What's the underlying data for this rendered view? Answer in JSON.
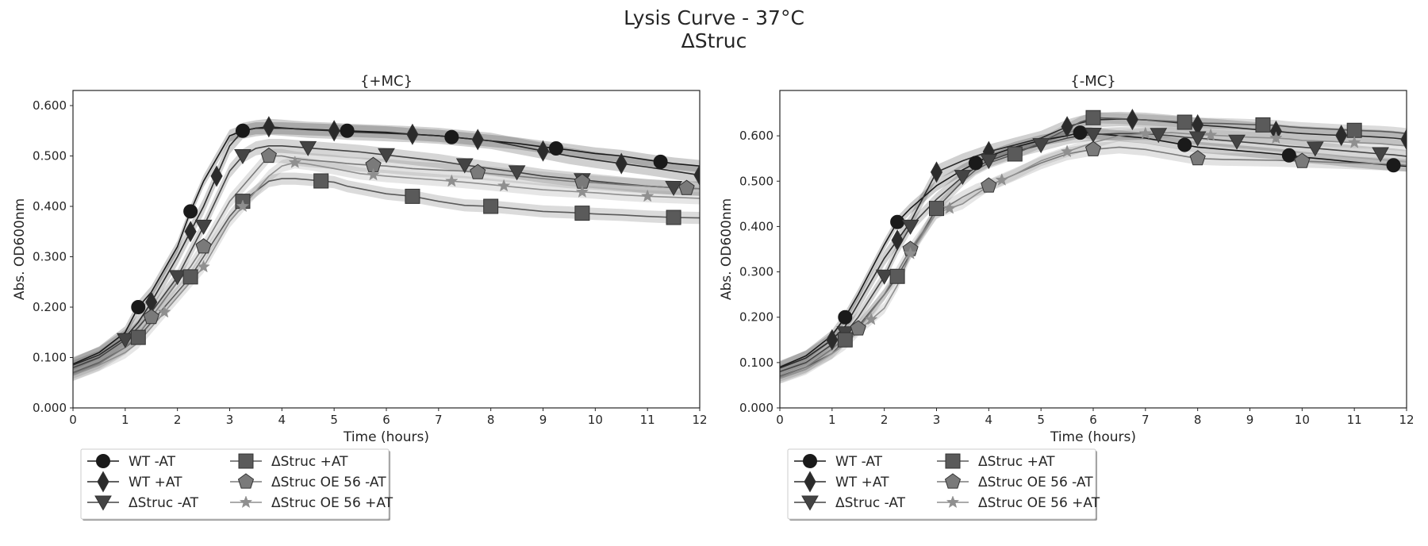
{
  "figure": {
    "title_line1": "Lysis Curve - 37°C",
    "title_line2": "ΔStruc"
  },
  "chart_data": [
    {
      "type": "line",
      "title": "{+MC}",
      "xlabel": "Time (hours)",
      "ylabel": "Abs. OD600nm",
      "xlim": [
        0,
        12
      ],
      "ylim": [
        0,
        0.63
      ],
      "x_ticks": [
        "0",
        "1",
        "2",
        "3",
        "4",
        "5",
        "6",
        "7",
        "8",
        "9",
        "10",
        "11",
        "12"
      ],
      "y_ticks": [
        "0.000",
        "0.100",
        "0.200",
        "0.300",
        "0.400",
        "0.500",
        "0.600"
      ],
      "grid": false,
      "legend_position": "below-left",
      "x": [
        0,
        0.5,
        1,
        1.25,
        1.5,
        2,
        2.25,
        2.5,
        3,
        3.25,
        3.5,
        3.75,
        4,
        4.25,
        4.5,
        5,
        5.25,
        5.5,
        6,
        6.5,
        7,
        7.5,
        8,
        8.5,
        9,
        9.5,
        10,
        10.5,
        11,
        11.5,
        12
      ],
      "series": [
        {
          "name": "WT -AT",
          "marker": "circle",
          "color": "#1a1a1a",
          "values": [
            0.087,
            0.11,
            0.15,
            0.2,
            0.23,
            0.32,
            0.39,
            0.45,
            0.54,
            0.55,
            0.555,
            0.555,
            0.555,
            0.554,
            0.553,
            0.551,
            0.55,
            0.549,
            0.547,
            0.543,
            0.54,
            0.535,
            0.53,
            0.525,
            0.518,
            0.512,
            0.505,
            0.5,
            0.492,
            0.485,
            0.48
          ],
          "markers_at": [
            1.25,
            2.25,
            3.25,
            5.25,
            7.25,
            9.25,
            11.25
          ]
        },
        {
          "name": "WT +AT",
          "marker": "diamond",
          "color": "#2b2b2b",
          "values": [
            0.085,
            0.105,
            0.14,
            0.17,
            0.21,
            0.3,
            0.35,
            0.4,
            0.52,
            0.55,
            0.555,
            0.558,
            0.556,
            0.554,
            0.552,
            0.55,
            0.548,
            0.547,
            0.545,
            0.543,
            0.54,
            0.535,
            0.53,
            0.52,
            0.51,
            0.5,
            0.492,
            0.485,
            0.478,
            0.47,
            0.462
          ],
          "markers_at": [
            1.5,
            2.25,
            2.75,
            3.75,
            5,
            6.5,
            7.75,
            9,
            10.5,
            12
          ]
        },
        {
          "name": "ΔStruc -AT",
          "marker": "triangle-down",
          "color": "#444444",
          "values": [
            0.08,
            0.1,
            0.135,
            0.16,
            0.19,
            0.26,
            0.31,
            0.36,
            0.47,
            0.5,
            0.515,
            0.52,
            0.52,
            0.518,
            0.516,
            0.512,
            0.51,
            0.508,
            0.502,
            0.496,
            0.49,
            0.482,
            0.475,
            0.468,
            0.46,
            0.455,
            0.45,
            0.445,
            0.44,
            0.437,
            0.435
          ],
          "markers_at": [
            1,
            2,
            2.5,
            3.25,
            4.5,
            6,
            7.5,
            8.5,
            9.75,
            11.5
          ]
        },
        {
          "name": "ΔStruc +AT",
          "marker": "square",
          "color": "#5a5a5a",
          "values": [
            0.07,
            0.09,
            0.12,
            0.14,
            0.17,
            0.23,
            0.26,
            0.3,
            0.38,
            0.41,
            0.43,
            0.45,
            0.455,
            0.455,
            0.453,
            0.448,
            0.44,
            0.435,
            0.425,
            0.42,
            0.41,
            0.402,
            0.4,
            0.395,
            0.39,
            0.388,
            0.385,
            0.383,
            0.38,
            0.378,
            0.377
          ],
          "markers_at": [
            1.25,
            2.25,
            3.25,
            4.75,
            6.5,
            8,
            9.75,
            11.5
          ]
        },
        {
          "name": "ΔStruc OE 56 -AT",
          "marker": "pentagon",
          "color": "#7a7a7a",
          "values": [
            0.068,
            0.088,
            0.12,
            0.145,
            0.18,
            0.25,
            0.28,
            0.32,
            0.41,
            0.44,
            0.47,
            0.5,
            0.5,
            0.495,
            0.492,
            0.488,
            0.485,
            0.483,
            0.48,
            0.475,
            0.472,
            0.47,
            0.465,
            0.46,
            0.455,
            0.45,
            0.447,
            0.443,
            0.44,
            0.437,
            0.435
          ],
          "markers_at": [
            1.5,
            2.5,
            3.75,
            5.75,
            7.75,
            9.75,
            11.75
          ]
        },
        {
          "name": "ΔStruc OE 56 +AT",
          "marker": "star",
          "color": "#8f8f8f",
          "values": [
            0.065,
            0.085,
            0.11,
            0.13,
            0.16,
            0.22,
            0.25,
            0.28,
            0.37,
            0.4,
            0.43,
            0.46,
            0.48,
            0.487,
            0.484,
            0.475,
            0.47,
            0.465,
            0.46,
            0.456,
            0.452,
            0.448,
            0.443,
            0.438,
            0.433,
            0.43,
            0.427,
            0.423,
            0.42,
            0.418,
            0.416
          ],
          "markers_at": [
            1.75,
            2.5,
            3.25,
            4.25,
            5.75,
            7.25,
            8.25,
            9.75,
            11
          ]
        }
      ]
    },
    {
      "type": "line",
      "title": "{-MC}",
      "xlabel": "Time (hours)",
      "ylabel": "Abs. OD600nm",
      "xlim": [
        0,
        12
      ],
      "ylim": [
        0,
        0.7
      ],
      "x_ticks": [
        "0",
        "1",
        "2",
        "3",
        "4",
        "5",
        "6",
        "7",
        "8",
        "9",
        "10",
        "11",
        "12"
      ],
      "y_ticks": [
        "0.000",
        "0.100",
        "0.200",
        "0.300",
        "0.400",
        "0.500",
        "0.600"
      ],
      "grid": false,
      "legend_position": "below-left",
      "x": [
        0,
        0.5,
        1,
        1.25,
        1.5,
        2,
        2.25,
        2.5,
        3,
        3.5,
        3.75,
        4,
        4.5,
        5,
        5.5,
        5.75,
        6,
        6.5,
        7,
        7.5,
        7.75,
        8,
        8.5,
        9,
        9.5,
        9.75,
        10,
        10.5,
        11,
        11.5,
        11.75,
        12
      ],
      "series": [
        {
          "name": "WT -AT",
          "marker": "circle",
          "color": "#1a1a1a",
          "values": [
            0.09,
            0.115,
            0.16,
            0.2,
            0.25,
            0.36,
            0.41,
            0.44,
            0.49,
            0.525,
            0.54,
            0.555,
            0.575,
            0.59,
            0.6,
            0.607,
            0.605,
            0.6,
            0.595,
            0.585,
            0.58,
            0.575,
            0.57,
            0.565,
            0.56,
            0.557,
            0.553,
            0.548,
            0.542,
            0.537,
            0.535,
            0.533
          ],
          "markers_at": [
            1.25,
            2.25,
            3.75,
            5.75,
            7.75,
            9.75,
            11.75
          ]
        },
        {
          "name": "WT +AT",
          "marker": "diamond",
          "color": "#2b2b2b",
          "values": [
            0.088,
            0.11,
            0.15,
            0.18,
            0.23,
            0.33,
            0.37,
            0.41,
            0.52,
            0.545,
            0.555,
            0.565,
            0.58,
            0.595,
            0.62,
            0.628,
            0.635,
            0.637,
            0.635,
            0.63,
            0.627,
            0.624,
            0.62,
            0.615,
            0.61,
            0.607,
            0.605,
            0.602,
            0.6,
            0.597,
            0.595,
            0.592
          ],
          "markers_at": [
            1,
            2.25,
            3,
            4,
            5.5,
            6.75,
            8,
            9.5,
            10.75,
            12
          ]
        },
        {
          "name": "ΔStruc -AT",
          "marker": "triangle-down",
          "color": "#444444",
          "values": [
            0.08,
            0.1,
            0.14,
            0.165,
            0.2,
            0.29,
            0.35,
            0.4,
            0.46,
            0.51,
            0.53,
            0.545,
            0.565,
            0.58,
            0.595,
            0.6,
            0.603,
            0.605,
            0.605,
            0.6,
            0.597,
            0.595,
            0.59,
            0.585,
            0.58,
            0.577,
            0.575,
            0.57,
            0.565,
            0.56,
            0.558,
            0.555
          ],
          "markers_at": [
            1.25,
            2,
            2.5,
            3.5,
            4,
            5,
            6,
            7.25,
            8,
            8.75,
            10.25,
            11.5
          ]
        },
        {
          "name": "ΔStruc +AT",
          "marker": "square",
          "color": "#5a5a5a",
          "values": [
            0.07,
            0.09,
            0.12,
            0.15,
            0.18,
            0.25,
            0.29,
            0.34,
            0.44,
            0.5,
            0.525,
            0.54,
            0.56,
            0.585,
            0.615,
            0.63,
            0.64,
            0.638,
            0.635,
            0.632,
            0.63,
            0.628,
            0.627,
            0.625,
            0.623,
            0.62,
            0.618,
            0.615,
            0.612,
            0.61,
            0.608,
            0.605
          ],
          "markers_at": [
            1.25,
            2.25,
            3,
            4.5,
            6,
            7.75,
            9.25,
            11
          ]
        },
        {
          "name": "ΔStruc OE 56 -AT",
          "marker": "pentagon",
          "color": "#7a7a7a",
          "values": [
            0.068,
            0.09,
            0.13,
            0.155,
            0.175,
            0.25,
            0.3,
            0.35,
            0.43,
            0.465,
            0.48,
            0.49,
            0.515,
            0.54,
            0.56,
            0.565,
            0.57,
            0.575,
            0.57,
            0.56,
            0.555,
            0.55,
            0.548,
            0.547,
            0.546,
            0.545,
            0.544,
            0.542,
            0.54,
            0.538,
            0.537,
            0.535
          ],
          "markers_at": [
            1.5,
            2.5,
            4,
            6,
            8,
            10
          ]
        },
        {
          "name": "ΔStruc OE 56 +AT",
          "marker": "star",
          "color": "#8f8f8f",
          "values": [
            0.065,
            0.085,
            0.12,
            0.14,
            0.17,
            0.22,
            0.27,
            0.34,
            0.43,
            0.45,
            0.47,
            0.49,
            0.515,
            0.545,
            0.565,
            0.575,
            0.585,
            0.6,
            0.605,
            0.607,
            0.605,
            0.603,
            0.6,
            0.597,
            0.595,
            0.593,
            0.59,
            0.588,
            0.585,
            0.583,
            0.58,
            0.578
          ],
          "markers_at": [
            1.75,
            2.5,
            3.25,
            4.25,
            5.5,
            7,
            8.25,
            9.5,
            11
          ]
        }
      ]
    }
  ]
}
